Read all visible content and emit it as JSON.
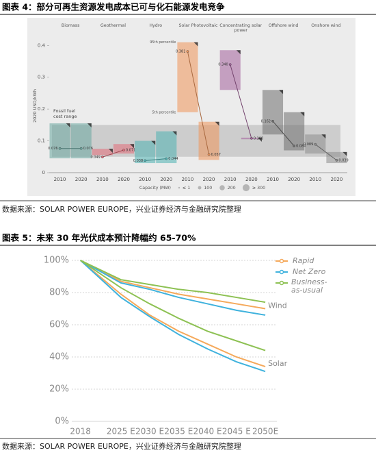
{
  "chart_data": [
    {
      "type": "cost-range",
      "title": "图表 4：部分可再生资源发电成本已可与化石能源发电竞争",
      "source": "数据来源：SOLAR POWER EUROPE，兴业证券经济与金融研究院整理",
      "y_label": "2020 USD/kWh",
      "categories": [
        "Biomass",
        "Geothermal",
        "Hydro",
        "Solar Photovoltaic",
        "Concentrating solar power",
        "Offshore wind",
        "Onshore wind"
      ],
      "colors": [
        "#6aa8a0",
        "#e46b78",
        "#4fb3b3",
        "#f0955a",
        "#a4609c",
        "#6f6f6f",
        "#8e8e8e"
      ],
      "series": [
        {
          "name": "2010",
          "values": [
            0.076,
            0.049,
            0.038,
            0.381,
            0.34,
            0.162,
            0.089
          ],
          "value_labels": [
            "0.076",
            "0.049",
            "0.038",
            "0.381",
            "0.340",
            "0.162",
            "0.089"
          ],
          "low": [
            0.045,
            0.055,
            0.03,
            0.19,
            0.26,
            0.12,
            0.06
          ],
          "high": [
            0.155,
            0.075,
            0.1,
            0.41,
            0.385,
            0.26,
            0.12
          ]
        },
        {
          "name": "2020",
          "values": [
            0.076,
            0.071,
            0.044,
            0.057,
            0.108,
            0.084,
            0.039
          ],
          "value_labels": [
            "0.076",
            "0.071",
            "0.044",
            "0.057",
            "0.108",
            "0.084",
            "0.039"
          ],
          "low": [
            0.045,
            0.06,
            0.03,
            0.04,
            0.105,
            0.07,
            0.03
          ],
          "high": [
            0.155,
            0.09,
            0.13,
            0.16,
            0.11,
            0.19,
            0.065
          ]
        }
      ],
      "fossil_fuel_range": {
        "label": "Fossil fuel cost range",
        "values": [
          0.05,
          0.15
        ]
      },
      "percentile_labels": [
        "95th percentile",
        "5th percentile"
      ],
      "capacity_legend": {
        "title": "Capacity (MW)",
        "labels": [
          "≤ 1",
          "100",
          "200",
          "≥ 300"
        ]
      },
      "ylim": [
        0,
        0.42
      ],
      "yticks": [
        0,
        0.1,
        0.2,
        0.3,
        0.4
      ]
    },
    {
      "type": "line",
      "title": "图表 5：未来 30 年光伏成本预计降幅约 65-70%",
      "source": "数据来源：SOLAR POWER EUROPE，兴业证券经济与金融研究院整理",
      "x": [
        2018,
        2025,
        2030,
        2035,
        2040,
        2045,
        2050
      ],
      "xlim": [
        2016.5,
        2052
      ],
      "xticks": [
        2018,
        {
          "value": 2025,
          "label": "2025 E"
        },
        {
          "value": 2030,
          "label": "2030 E"
        },
        {
          "value": 2035,
          "label": "2035 E"
        },
        {
          "value": 2040,
          "label": "2040 E"
        },
        {
          "value": 2045,
          "label": "2045 E"
        },
        {
          "value": 2050,
          "label": "2050E"
        }
      ],
      "ylim": [
        0,
        100
      ],
      "yticks": [
        {
          "value": 0,
          "label": "0%"
        },
        {
          "value": 20,
          "label": "20%"
        },
        {
          "value": 40,
          "label": "40%"
        },
        {
          "value": 60,
          "label": "60%"
        },
        {
          "value": 80,
          "label": "80%"
        },
        {
          "value": 100,
          "label": "100%"
        }
      ],
      "grid": true,
      "scenarios": [
        {
          "name": "Rapid",
          "color": "#f5a95b"
        },
        {
          "name": "Net Zero",
          "color": "#3fb2dd"
        },
        {
          "name": "Business-as-usual",
          "color": "#8dc153"
        }
      ],
      "groups": [
        {
          "label": "Wind",
          "series": [
            {
              "values": [
                100,
                87,
                83,
                79,
                76,
                73,
                70
              ]
            },
            {
              "values": [
                100,
                86,
                82,
                77,
                73,
                69,
                66
              ]
            },
            {
              "values": [
                100,
                88,
                85,
                82,
                80,
                77,
                74
              ]
            }
          ]
        },
        {
          "label": "Solar",
          "series": [
            {
              "values": [
                100,
                79,
                66,
                56,
                48,
                40,
                34
              ]
            },
            {
              "values": [
                100,
                77,
                65,
                54,
                45,
                37,
                31
              ]
            },
            {
              "values": [
                100,
                83,
                73,
                64,
                56,
                50,
                44
              ]
            }
          ]
        }
      ]
    }
  ]
}
